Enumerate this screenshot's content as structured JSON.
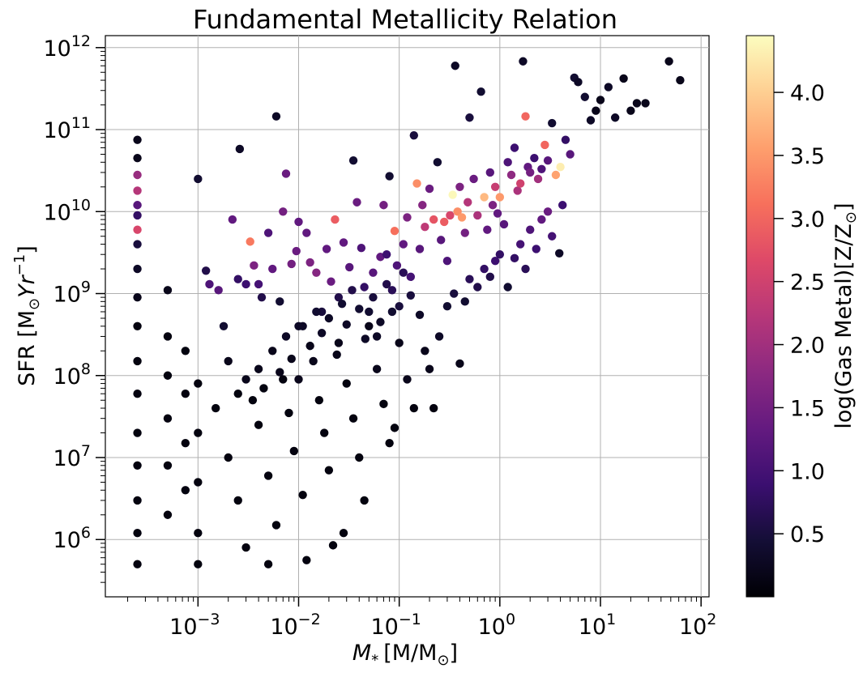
{
  "chart_data": {
    "type": "scatter",
    "title": "Fundamental Metallicity Relation",
    "xlabel_prefix": "M",
    "xlabel_sub": "*",
    "xlabel_unit": "[M/M",
    "xlabel_unit_close": "]",
    "ylabel_prefix": "SFR [M",
    "ylabel_mid": "Yr",
    "ylabel_sup": "−1",
    "ylabel_close": "]",
    "colorbar_label": "log(Gas Metal)[Z/Z",
    "colorbar_label_close": "]",
    "sun_symbol": "⊙",
    "x_scale": "log",
    "y_scale": "log",
    "xlim": [
      0.00012,
      120
    ],
    "ylim": [
      200000,
      1400000000000.0
    ],
    "x_ticks": [
      {
        "label_base": "10",
        "label_exp": "−3",
        "value": 0.001
      },
      {
        "label_base": "10",
        "label_exp": "−2",
        "value": 0.01
      },
      {
        "label_base": "10",
        "label_exp": "−1",
        "value": 0.1
      },
      {
        "label_base": "10",
        "label_exp": "0",
        "value": 1
      },
      {
        "label_base": "10",
        "label_exp": "1",
        "value": 10
      },
      {
        "label_base": "10",
        "label_exp": "2",
        "value": 100
      }
    ],
    "y_ticks": [
      {
        "label_base": "10",
        "label_exp": "6",
        "value": 1000000
      },
      {
        "label_base": "10",
        "label_exp": "7",
        "value": 10000000
      },
      {
        "label_base": "10",
        "label_exp": "8",
        "value": 100000000
      },
      {
        "label_base": "10",
        "label_exp": "9",
        "value": 1000000000
      },
      {
        "label_base": "10",
        "label_exp": "10",
        "value": 10000000000
      },
      {
        "label_base": "10",
        "label_exp": "11",
        "value": 100000000000
      },
      {
        "label_base": "10",
        "label_exp": "12",
        "value": 1000000000000
      }
    ],
    "grid": true,
    "colormap": "magma",
    "colorbar_range": [
      0,
      4.45
    ],
    "colorbar_ticks": [
      "0.5",
      "1.0",
      "1.5",
      "2.0",
      "2.5",
      "3.0",
      "3.5",
      "4.0"
    ],
    "colormap_stops": [
      "#000004",
      "#140e36",
      "#3b0f70",
      "#641a80",
      "#8c2981",
      "#b73779",
      "#de4968",
      "#f7705c",
      "#fe9f6d",
      "#fecf92",
      "#fcfdbf"
    ],
    "marker_color_note": "points colored by log(Gas Metal)",
    "points": [
      [
        0.00025,
        45000000000,
        0.2
      ],
      [
        0.00025,
        28000000000,
        1.9
      ],
      [
        0.00025,
        18000000000,
        2.2
      ],
      [
        0.00025,
        12000000000,
        1.2
      ],
      [
        0.00025,
        9000000000,
        0.8
      ],
      [
        0.00025,
        6000000000,
        2.6
      ],
      [
        0.00025,
        4000000000,
        0.5
      ],
      [
        0.00025,
        2000000000,
        0.3
      ],
      [
        0.00025,
        900000000,
        0.2
      ],
      [
        0.00025,
        400000000,
        0.1
      ],
      [
        0.00025,
        150000000,
        0.1
      ],
      [
        0.00025,
        60000000,
        0.1
      ],
      [
        0.00025,
        20000000,
        0.1
      ],
      [
        0.00025,
        8000000,
        0.1
      ],
      [
        0.00025,
        3000000,
        0.1
      ],
      [
        0.00025,
        1200000,
        0.1
      ],
      [
        0.00025,
        500000,
        0.1
      ],
      [
        0.00025,
        75000000000,
        0.2
      ],
      [
        0.0005,
        1100000000,
        0.2
      ],
      [
        0.0005,
        300000000,
        0.1
      ],
      [
        0.0005,
        100000000,
        0.1
      ],
      [
        0.0005,
        30000000,
        0.1
      ],
      [
        0.0005,
        8000000,
        0.1
      ],
      [
        0.0005,
        2000000,
        0.1
      ],
      [
        0.00075,
        200000000,
        0.1
      ],
      [
        0.00075,
        60000000,
        0.1
      ],
      [
        0.00075,
        15000000,
        0.1
      ],
      [
        0.00075,
        4000000,
        0.1
      ],
      [
        0.001,
        25000000000,
        0.4
      ],
      [
        0.001,
        80000000,
        0.1
      ],
      [
        0.001,
        20000000,
        0.1
      ],
      [
        0.001,
        5000000,
        0.1
      ],
      [
        0.001,
        1200000,
        0.1
      ],
      [
        0.001,
        500000,
        0.1
      ],
      [
        0.0012,
        1900000000,
        0.6
      ],
      [
        0.0013,
        1300000000,
        1.1
      ],
      [
        0.0016,
        1100000000,
        1.2
      ],
      [
        0.0018,
        400000000,
        0.4
      ],
      [
        0.002,
        150000000,
        0.2
      ],
      [
        0.0022,
        8000000000,
        1.3
      ],
      [
        0.0025,
        1500000000,
        0.8
      ],
      [
        0.0026,
        58000000000,
        0.3
      ],
      [
        0.003,
        1300000000,
        0.9
      ],
      [
        0.0033,
        4300000000,
        3.2
      ],
      [
        0.0036,
        2200000000,
        1.6
      ],
      [
        0.004,
        1300000000,
        1.0
      ],
      [
        0.0043,
        900000000,
        0.6
      ],
      [
        0.005,
        5500000000,
        1.1
      ],
      [
        0.005,
        500000,
        0.1
      ],
      [
        0.0055,
        2000000000,
        1.3
      ],
      [
        0.006,
        145000000000,
        0.3
      ],
      [
        0.0065,
        800000000,
        0.4
      ],
      [
        0.007,
        10000000000,
        1.5
      ],
      [
        0.0075,
        29000000000,
        1.4
      ],
      [
        0.0085,
        2300000000,
        1.5
      ],
      [
        0.0095,
        3300000000,
        1.4
      ],
      [
        0.01,
        7500000000,
        1.3
      ],
      [
        0.01,
        400000000,
        0.3
      ],
      [
        0.012,
        5500000000,
        1.3
      ],
      [
        0.013,
        2400000000,
        1.6
      ],
      [
        0.015,
        1800000000,
        1.7
      ],
      [
        0.017,
        600000000,
        0.5
      ],
      [
        0.019,
        3500000000,
        1.3
      ],
      [
        0.021,
        1400000000,
        1.4
      ],
      [
        0.023,
        8000000000,
        2.9
      ],
      [
        0.025,
        900000000,
        0.6
      ],
      [
        0.028,
        4200000000,
        1.3
      ],
      [
        0.032,
        2100000000,
        1.2
      ],
      [
        0.035,
        42000000000,
        0.4
      ],
      [
        0.038,
        13000000000,
        1.4
      ],
      [
        0.042,
        3600000000,
        1.1
      ],
      [
        0.045,
        1200000000,
        0.8
      ],
      [
        0.05,
        600000000,
        0.4
      ],
      [
        0.055,
        1800000000,
        1.2
      ],
      [
        0.06,
        300000000,
        0.3
      ],
      [
        0.065,
        2800000000,
        1.3
      ],
      [
        0.07,
        12000000000,
        1.5
      ],
      [
        0.075,
        3000000000,
        0.9
      ],
      [
        0.08,
        27000000000,
        0.4
      ],
      [
        0.085,
        1100000000,
        0.7
      ],
      [
        0.09,
        5800000000,
        3.1
      ],
      [
        0.095,
        2200000000,
        1.1
      ],
      [
        0.1,
        700000000,
        0.5
      ],
      [
        0.11,
        4000000000,
        1.3
      ],
      [
        0.12,
        8500000000,
        1.6
      ],
      [
        0.13,
        1600000000,
        1.0
      ],
      [
        0.14,
        85000000000,
        0.5
      ],
      [
        0.15,
        22000000000,
        3.4
      ],
      [
        0.16,
        3500000000,
        1.2
      ],
      [
        0.17,
        12000000000,
        1.7
      ],
      [
        0.18,
        6500000000,
        2.3
      ],
      [
        0.2,
        19000000000,
        1.4
      ],
      [
        0.22,
        8000000000,
        2.8
      ],
      [
        0.24,
        40000000000,
        0.4
      ],
      [
        0.26,
        4500000000,
        1.2
      ],
      [
        0.28,
        7500000000,
        2.9
      ],
      [
        0.3,
        2500000000,
        1.1
      ],
      [
        0.32,
        9000000000,
        2.6
      ],
      [
        0.34,
        16000000000,
        4.4
      ],
      [
        0.36,
        600000000000,
        0.3
      ],
      [
        0.38,
        10000000000,
        3.4
      ],
      [
        0.4,
        20000000000,
        1.6
      ],
      [
        0.42,
        8500000000,
        3.5
      ],
      [
        0.45,
        5500000000,
        1.5
      ],
      [
        0.48,
        13000000000,
        2.2
      ],
      [
        0.5,
        140000000000,
        0.5
      ],
      [
        0.55,
        25000000000,
        1.4
      ],
      [
        0.6,
        9000000000,
        2.1
      ],
      [
        0.65,
        290000000000,
        0.4
      ],
      [
        0.7,
        15000000000,
        3.8
      ],
      [
        0.75,
        6000000000,
        1.3
      ],
      [
        0.8,
        30000000000,
        1.2
      ],
      [
        0.85,
        12000000000,
        1.6
      ],
      [
        0.9,
        20000000000,
        2.4
      ],
      [
        0.95,
        9500000000,
        1.3
      ],
      [
        1.0,
        15000000000,
        3.5
      ],
      [
        1.1,
        7000000000,
        1.2
      ],
      [
        1.2,
        40000000000,
        1.1
      ],
      [
        1.3,
        28000000000,
        1.8
      ],
      [
        1.4,
        60000000000,
        0.9
      ],
      [
        1.5,
        18000000000,
        2.1
      ],
      [
        1.6,
        22000000000,
        2.5
      ],
      [
        1.7,
        680000000000,
        0.3
      ],
      [
        1.8,
        145000000000,
        3.0
      ],
      [
        1.9,
        35000000000,
        1.3
      ],
      [
        2.0,
        30000000000,
        1.5
      ],
      [
        2.2,
        45000000000,
        0.9
      ],
      [
        2.4,
        25000000000,
        2.0
      ],
      [
        2.6,
        33000000000,
        1.1
      ],
      [
        2.8,
        65000000000,
        3.0
      ],
      [
        3.0,
        42000000000,
        1.2
      ],
      [
        3.3,
        120000000000,
        0.4
      ],
      [
        3.6,
        28000000000,
        3.6
      ],
      [
        4.0,
        35000000000,
        4.3
      ],
      [
        4.5,
        75000000000,
        0.8
      ],
      [
        5.0,
        50000000000,
        1.2
      ],
      [
        5.5,
        430000000000,
        0.4
      ],
      [
        6.0,
        380000000000,
        0.3
      ],
      [
        7.0,
        250000000000,
        0.4
      ],
      [
        8.0,
        130000000000,
        0.3
      ],
      [
        9.0,
        170000000000,
        0.2
      ],
      [
        10.0,
        230000000000,
        0.2
      ],
      [
        12.0,
        330000000000,
        0.3
      ],
      [
        14.0,
        140000000000,
        0.3
      ],
      [
        17.0,
        420000000000,
        0.2
      ],
      [
        20.0,
        170000000000,
        0.2
      ],
      [
        23.0,
        210000000000,
        0.2
      ],
      [
        28.0,
        210000000000,
        0.2
      ],
      [
        48.0,
        680000000000,
        0.2
      ],
      [
        62.0,
        400000000000,
        0.2
      ],
      [
        0.0015,
        40000000,
        0.1
      ],
      [
        0.002,
        10000000,
        0.1
      ],
      [
        0.0025,
        3000000,
        0.1
      ],
      [
        0.003,
        800000,
        0.1
      ],
      [
        0.004,
        25000000,
        0.1
      ],
      [
        0.005,
        6000000,
        0.1
      ],
      [
        0.006,
        1500000,
        0.1
      ],
      [
        0.007,
        90000000,
        0.1
      ],
      [
        0.008,
        35000000,
        0.1
      ],
      [
        0.009,
        12000000,
        0.1
      ],
      [
        0.011,
        3500000,
        0.1
      ],
      [
        0.012,
        560000,
        0.1
      ],
      [
        0.014,
        150000000,
        0.2
      ],
      [
        0.016,
        50000000,
        0.1
      ],
      [
        0.018,
        20000000,
        0.1
      ],
      [
        0.02,
        7000000,
        0.1
      ],
      [
        0.022,
        850000,
        0.1
      ],
      [
        0.025,
        250000000,
        0.2
      ],
      [
        0.028,
        1200000,
        0.1
      ],
      [
        0.03,
        80000000,
        0.1
      ],
      [
        0.035,
        30000000,
        0.1
      ],
      [
        0.04,
        10000000,
        0.1
      ],
      [
        0.045,
        3000000,
        0.1
      ],
      [
        0.05,
        400000000,
        0.2
      ],
      [
        0.06,
        120000000,
        0.2
      ],
      [
        0.07,
        45000000,
        0.1
      ],
      [
        0.08,
        15000000,
        0.1
      ],
      [
        0.09,
        23000000,
        0.1
      ],
      [
        0.1,
        250000000,
        0.2
      ],
      [
        0.12,
        90000000,
        0.2
      ],
      [
        0.14,
        40000000,
        0.1
      ],
      [
        0.16,
        550000000,
        0.3
      ],
      [
        0.18,
        200000000,
        0.2
      ],
      [
        0.2,
        120000000,
        0.2
      ],
      [
        0.22,
        40000000,
        0.1
      ],
      [
        0.25,
        300000000,
        0.3
      ],
      [
        0.3,
        700000000,
        0.4
      ],
      [
        0.35,
        1000000000,
        0.5
      ],
      [
        0.4,
        140000000,
        0.2
      ],
      [
        0.45,
        800000000,
        0.4
      ],
      [
        0.5,
        1500000000,
        0.7
      ],
      [
        0.6,
        1200000000,
        0.6
      ],
      [
        0.7,
        2000000000,
        0.8
      ],
      [
        0.8,
        1600000000,
        0.6
      ],
      [
        0.9,
        2500000000,
        0.9
      ],
      [
        1.0,
        3000000000,
        0.8
      ],
      [
        1.2,
        1200000000,
        0.4
      ],
      [
        1.4,
        2700000000,
        0.8
      ],
      [
        1.6,
        4000000000,
        1.0
      ],
      [
        1.8,
        2000000000,
        0.7
      ],
      [
        2.0,
        6000000000,
        1.1
      ],
      [
        2.3,
        3500000000,
        0.9
      ],
      [
        2.6,
        8000000000,
        1.3
      ],
      [
        3.0,
        10000000000,
        1.4
      ],
      [
        3.3,
        5000000000,
        1.0
      ],
      [
        3.9,
        3100000000,
        0.3
      ],
      [
        4.2,
        12000000000,
        0.9
      ],
      [
        0.0025,
        60000000,
        0.1
      ],
      [
        0.003,
        90000000,
        0.2
      ],
      [
        0.0035,
        50000000,
        0.1
      ],
      [
        0.004,
        120000000,
        0.2
      ],
      [
        0.0045,
        70000000,
        0.1
      ],
      [
        0.0055,
        200000000,
        0.2
      ],
      [
        0.0065,
        110000000,
        0.2
      ],
      [
        0.0075,
        300000000,
        0.3
      ],
      [
        0.0085,
        160000000,
        0.2
      ],
      [
        0.01,
        90000000,
        0.2
      ],
      [
        0.011,
        400000000,
        0.3
      ],
      [
        0.013,
        230000000,
        0.2
      ],
      [
        0.015,
        600000000,
        0.4
      ],
      [
        0.017,
        330000000,
        0.3
      ],
      [
        0.02,
        500000000,
        0.3
      ],
      [
        0.024,
        180000000,
        0.2
      ],
      [
        0.027,
        750000000,
        0.4
      ],
      [
        0.03,
        420000000,
        0.3
      ],
      [
        0.034,
        1100000000,
        0.6
      ],
      [
        0.04,
        650000000,
        0.4
      ],
      [
        0.046,
        280000000,
        0.3
      ],
      [
        0.055,
        900000000,
        0.5
      ],
      [
        0.065,
        450000000,
        0.3
      ],
      [
        0.075,
        1300000000,
        0.6
      ],
      [
        0.085,
        600000000,
        0.4
      ],
      [
        0.11,
        1800000000,
        0.7
      ],
      [
        0.13,
        950000000,
        0.5
      ]
    ]
  }
}
